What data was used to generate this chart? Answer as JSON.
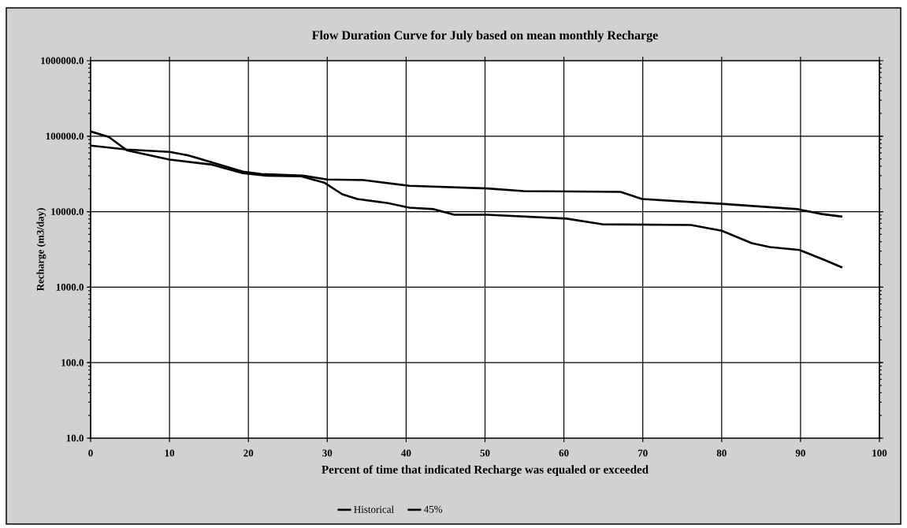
{
  "chart_data": {
    "type": "line",
    "title": "Flow Duration Curve  for July based on mean monthly Recharge",
    "xlabel": "Percent of time that indicated  Recharge was equaled or exceeded",
    "ylabel": "Recharge (m3/day)",
    "series": [
      {
        "name": "Historical",
        "color": "#000000",
        "x": [
          0,
          2.3,
          4.6,
          10,
          15.4,
          19.3,
          22.3,
          26.6,
          29.6,
          31.9,
          33.8,
          37.7,
          40.4,
          43.5,
          46.1,
          50.3,
          60.3,
          64.9,
          76.1,
          80,
          83.8,
          86.1,
          89.9,
          93,
          95.3
        ],
        "values": [
          115500,
          97700,
          65000,
          49000,
          42000,
          32400,
          30000,
          29500,
          24300,
          17000,
          14700,
          13000,
          11300,
          10800,
          9100,
          9100,
          8100,
          6800,
          6650,
          5600,
          3830,
          3400,
          3100,
          2300,
          1820
        ]
      },
      {
        "name": "45%",
        "color": "#000000",
        "x": [
          0,
          4.6,
          10,
          12.3,
          19.3,
          21.6,
          26.9,
          30,
          34.6,
          40.4,
          50.3,
          54.9,
          67.2,
          69.9,
          80,
          89.6,
          92.7,
          95.3
        ],
        "values": [
          75000,
          66500,
          62000,
          56000,
          34000,
          31600,
          30000,
          26700,
          26200,
          22000,
          20300,
          18700,
          18300,
          14700,
          12700,
          10800,
          9300,
          8600
        ]
      }
    ],
    "xlim": [
      0,
      100
    ],
    "xticks": [
      0,
      10,
      20,
      30,
      40,
      50,
      60,
      70,
      80,
      90,
      100
    ],
    "ylim": [
      10,
      1000000
    ],
    "yticks": [
      {
        "value": 10,
        "label": "10.0"
      },
      {
        "value": 100,
        "label": "100.0"
      },
      {
        "value": 1000,
        "label": "1000.0"
      },
      {
        "value": 10000,
        "label": "10000.0"
      },
      {
        "value": 100000,
        "label": "100000.0"
      },
      {
        "value": 1000000,
        "label": "1000000.0"
      }
    ],
    "log": "y",
    "grid": true,
    "legend": "bottom"
  }
}
